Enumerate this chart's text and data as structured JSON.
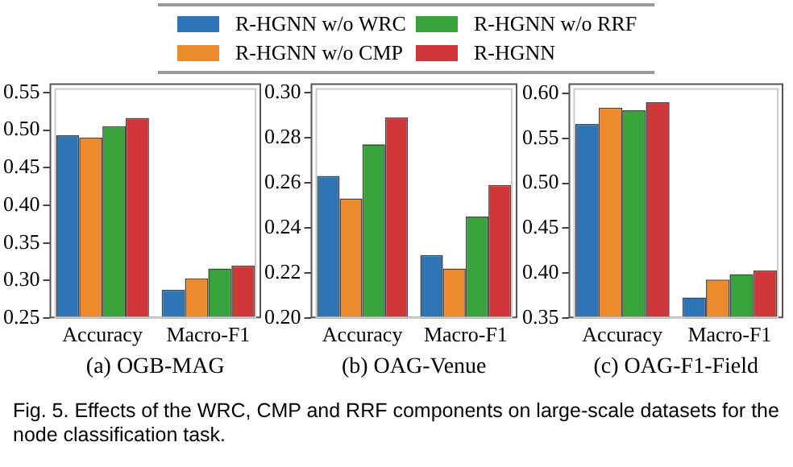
{
  "chart_data": [
    {
      "type": "bar",
      "xlabel": "(a) OGB-MAG",
      "categories": [
        "Accuracy",
        "Macro-F1"
      ],
      "legend": "top",
      "grid": false,
      "series": [
        {
          "name": "R-HGNN w/o WRC",
          "color": "#2e75b6",
          "values": [
            0.493,
            0.288
          ]
        },
        {
          "name": "R-HGNN w/o CMP",
          "color": "#ed8a2e",
          "values": [
            0.49,
            0.303
          ]
        },
        {
          "name": "R-HGNN w/o RRF",
          "color": "#38a33a",
          "values": [
            0.505,
            0.316
          ]
        },
        {
          "name": "R-HGNN",
          "color": "#d0373b",
          "values": [
            0.516,
            0.32
          ]
        }
      ],
      "ylim": [
        0.25,
        0.562
      ],
      "yticks": [
        {
          "value": 0.25,
          "label": "0.25"
        },
        {
          "value": 0.3,
          "label": "0.30"
        },
        {
          "value": 0.35,
          "label": "0.35"
        },
        {
          "value": 0.4,
          "label": "0.40"
        },
        {
          "value": 0.45,
          "label": "0.45"
        },
        {
          "value": 0.5,
          "label": "0.50"
        },
        {
          "value": 0.55,
          "label": "0.55"
        }
      ],
      "annotations": [
        "Fig. 5.  Effects of the WRC, CMP and RRF components on large-scale datasets for the node classification task."
      ]
    },
    {
      "type": "bar",
      "xlabel": "(b) OAG-Venue",
      "categories": [
        "Accuracy",
        "Macro-F1"
      ],
      "grid": false,
      "series": [
        {
          "color": "#2e75b6",
          "values": [
            0.263,
            0.228
          ]
        },
        {
          "color": "#ed8a2e",
          "values": [
            0.253,
            0.222
          ]
        },
        {
          "color": "#38a33a",
          "values": [
            0.277,
            0.245
          ]
        },
        {
          "color": "#d0373b",
          "values": [
            0.289,
            0.259
          ]
        }
      ],
      "ylim": [
        0.2,
        0.304
      ],
      "yticks": [
        {
          "value": 0.2,
          "label": "0.20"
        },
        {
          "value": 0.22,
          "label": "0.22"
        },
        {
          "value": 0.24,
          "label": "0.24"
        },
        {
          "value": 0.26,
          "label": "0.26"
        },
        {
          "value": 0.28,
          "label": "0.28"
        },
        {
          "value": 0.3,
          "label": "0.30"
        }
      ]
    },
    {
      "type": "bar",
      "xlabel": "(c) OAG-F1-Field",
      "categories": [
        "Accuracy",
        "Macro-F1"
      ],
      "grid": false,
      "series": [
        {
          "color": "#2e75b6",
          "values": [
            0.566,
            0.373
          ]
        },
        {
          "color": "#ed8a2e",
          "values": [
            0.584,
            0.393
          ]
        },
        {
          "color": "#38a33a",
          "values": [
            0.581,
            0.399
          ]
        },
        {
          "color": "#d0373b",
          "values": [
            0.59,
            0.403
          ]
        }
      ],
      "ylim": [
        0.35,
        0.611
      ],
      "yticks": [
        {
          "value": 0.35,
          "label": "0.35"
        },
        {
          "value": 0.4,
          "label": "0.40"
        },
        {
          "value": 0.45,
          "label": "0.45"
        },
        {
          "value": 0.5,
          "label": "0.50"
        },
        {
          "value": 0.55,
          "label": "0.55"
        },
        {
          "value": 0.6,
          "label": "0.60"
        }
      ]
    }
  ]
}
